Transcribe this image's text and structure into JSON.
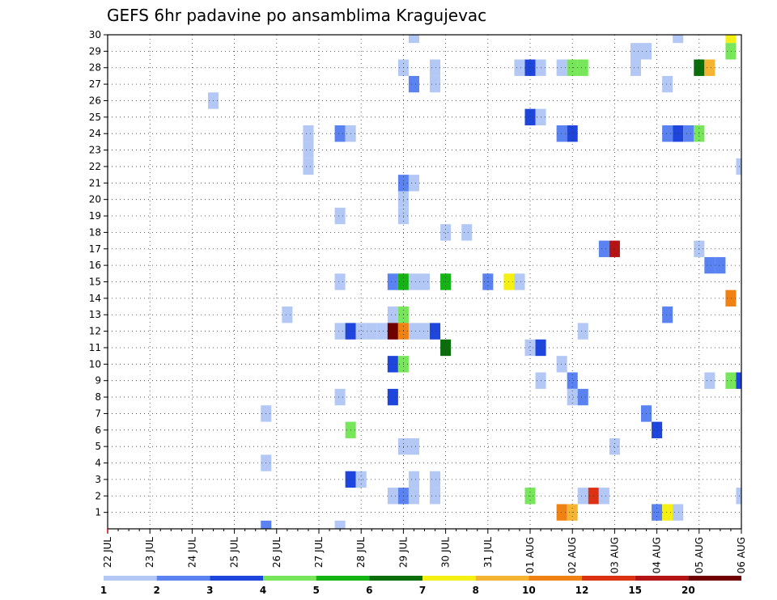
{
  "chart_data": {
    "type": "heatmap",
    "title": "GEFS 6hr padavine po ansamblima Kragujevac",
    "xlabel": "",
    "ylabel": "",
    "x_tick_labels": [
      "22 JUL",
      "23 JUL",
      "24 JUL",
      "25 JUL",
      "26 JUL",
      "27 JUL",
      "28 JUL",
      "29 JUL",
      "30 JUL",
      "31 JUL",
      "01 AUG",
      "02 AUG",
      "03 AUG",
      "04 AUG",
      "05 AUG",
      "06 AUG"
    ],
    "x_range_days": [
      0,
      15
    ],
    "y_tick_labels": [
      1,
      2,
      3,
      4,
      5,
      6,
      7,
      8,
      9,
      10,
      11,
      12,
      13,
      14,
      15,
      16,
      17,
      18,
      19,
      20,
      21,
      22,
      23,
      24,
      25,
      26,
      27,
      28,
      29,
      30
    ],
    "y_range": [
      0,
      30
    ],
    "grid": true,
    "legend": {
      "placement": "bottom",
      "labels": [
        "1",
        "2",
        "3",
        "4",
        "5",
        "6",
        "7",
        "8",
        "10",
        "12",
        "15",
        "20"
      ],
      "colors": [
        "#b4c8f5",
        "#5a82f0",
        "#1e46dc",
        "#78e65a",
        "#14b414",
        "#0a6e0a",
        "#f5f014",
        "#f5b432",
        "#f08214",
        "#dc3214",
        "#b41414",
        "#700000"
      ]
    },
    "points": [
      {
        "d": 7.25,
        "m": 30,
        "b": 1
      },
      {
        "d": 13.5,
        "m": 30,
        "b": 1
      },
      {
        "d": 14.75,
        "m": 30,
        "b": 7
      },
      {
        "d": 12.5,
        "m": 29,
        "b": 1
      },
      {
        "d": 12.75,
        "m": 29,
        "b": 1
      },
      {
        "d": 14.75,
        "m": 29,
        "b": 4
      },
      {
        "d": 7.0,
        "m": 28,
        "b": 1
      },
      {
        "d": 7.75,
        "m": 28,
        "b": 1
      },
      {
        "d": 9.75,
        "m": 28,
        "b": 1
      },
      {
        "d": 10.0,
        "m": 28,
        "b": 3
      },
      {
        "d": 10.25,
        "m": 28,
        "b": 1
      },
      {
        "d": 10.75,
        "m": 28,
        "b": 1
      },
      {
        "d": 11.0,
        "m": 28,
        "b": 4
      },
      {
        "d": 11.25,
        "m": 28,
        "b": 4
      },
      {
        "d": 12.5,
        "m": 28,
        "b": 1
      },
      {
        "d": 14.0,
        "m": 28,
        "b": 6
      },
      {
        "d": 14.25,
        "m": 28,
        "b": 8
      },
      {
        "d": 7.25,
        "m": 27,
        "b": 2
      },
      {
        "d": 7.75,
        "m": 27,
        "b": 1
      },
      {
        "d": 13.25,
        "m": 27,
        "b": 1
      },
      {
        "d": 2.5,
        "m": 26,
        "b": 1
      },
      {
        "d": 10.0,
        "m": 25,
        "b": 3
      },
      {
        "d": 10.25,
        "m": 25,
        "b": 1
      },
      {
        "d": 4.75,
        "m": 24,
        "b": 1
      },
      {
        "d": 5.5,
        "m": 24,
        "b": 2
      },
      {
        "d": 5.75,
        "m": 24,
        "b": 1
      },
      {
        "d": 10.75,
        "m": 24,
        "b": 2
      },
      {
        "d": 11.0,
        "m": 24,
        "b": 3
      },
      {
        "d": 13.25,
        "m": 24,
        "b": 2
      },
      {
        "d": 13.5,
        "m": 24,
        "b": 3
      },
      {
        "d": 13.75,
        "m": 24,
        "b": 2
      },
      {
        "d": 14.0,
        "m": 24,
        "b": 4
      },
      {
        "d": 4.75,
        "m": 23,
        "b": 1
      },
      {
        "d": 4.75,
        "m": 22,
        "b": 1
      },
      {
        "d": 15.0,
        "m": 22,
        "b": 1
      },
      {
        "d": 7.0,
        "m": 21,
        "b": 2
      },
      {
        "d": 7.25,
        "m": 21,
        "b": 1
      },
      {
        "d": 7.0,
        "m": 20,
        "b": 1
      },
      {
        "d": 5.5,
        "m": 19,
        "b": 1
      },
      {
        "d": 7.0,
        "m": 19,
        "b": 1
      },
      {
        "d": 8.0,
        "m": 18,
        "b": 1
      },
      {
        "d": 8.5,
        "m": 18,
        "b": 1
      },
      {
        "d": 11.75,
        "m": 17,
        "b": 2
      },
      {
        "d": 12.0,
        "m": 17,
        "b": 11
      },
      {
        "d": 14.0,
        "m": 17,
        "b": 1
      },
      {
        "d": 14.25,
        "m": 16,
        "b": 2
      },
      {
        "d": 14.5,
        "m": 16,
        "b": 2
      },
      {
        "d": 5.5,
        "m": 15,
        "b": 1
      },
      {
        "d": 6.75,
        "m": 15,
        "b": 2
      },
      {
        "d": 7.0,
        "m": 15,
        "b": 5
      },
      {
        "d": 7.25,
        "m": 15,
        "b": 1
      },
      {
        "d": 7.5,
        "m": 15,
        "b": 1
      },
      {
        "d": 8.0,
        "m": 15,
        "b": 5
      },
      {
        "d": 9.0,
        "m": 15,
        "b": 2
      },
      {
        "d": 9.5,
        "m": 15,
        "b": 7
      },
      {
        "d": 9.75,
        "m": 15,
        "b": 1
      },
      {
        "d": 14.75,
        "m": 14,
        "b": 9
      },
      {
        "d": 4.25,
        "m": 13,
        "b": 1
      },
      {
        "d": 6.75,
        "m": 13,
        "b": 1
      },
      {
        "d": 7.0,
        "m": 13,
        "b": 4
      },
      {
        "d": 13.25,
        "m": 13,
        "b": 2
      },
      {
        "d": 5.5,
        "m": 12,
        "b": 1
      },
      {
        "d": 5.75,
        "m": 12,
        "b": 3
      },
      {
        "d": 6.0,
        "m": 12,
        "b": 1
      },
      {
        "d": 6.25,
        "m": 12,
        "b": 1
      },
      {
        "d": 6.5,
        "m": 12,
        "b": 1
      },
      {
        "d": 6.75,
        "m": 12,
        "b": 12
      },
      {
        "d": 7.0,
        "m": 12,
        "b": 9
      },
      {
        "d": 7.25,
        "m": 12,
        "b": 1
      },
      {
        "d": 7.5,
        "m": 12,
        "b": 1
      },
      {
        "d": 7.75,
        "m": 12,
        "b": 3
      },
      {
        "d": 11.25,
        "m": 12,
        "b": 1
      },
      {
        "d": 8.0,
        "m": 11,
        "b": 6
      },
      {
        "d": 10.0,
        "m": 11,
        "b": 1
      },
      {
        "d": 10.25,
        "m": 11,
        "b": 3
      },
      {
        "d": 6.75,
        "m": 10,
        "b": 3
      },
      {
        "d": 7.0,
        "m": 10,
        "b": 4
      },
      {
        "d": 10.75,
        "m": 10,
        "b": 1
      },
      {
        "d": 10.25,
        "m": 9,
        "b": 1
      },
      {
        "d": 11.0,
        "m": 9,
        "b": 2
      },
      {
        "d": 14.25,
        "m": 9,
        "b": 1
      },
      {
        "d": 14.75,
        "m": 9,
        "b": 4
      },
      {
        "d": 15.0,
        "m": 9,
        "b": 3
      },
      {
        "d": 5.5,
        "m": 8,
        "b": 1
      },
      {
        "d": 6.75,
        "m": 8,
        "b": 3
      },
      {
        "d": 11.0,
        "m": 8,
        "b": 1
      },
      {
        "d": 11.25,
        "m": 8,
        "b": 2
      },
      {
        "d": 3.75,
        "m": 7,
        "b": 1
      },
      {
        "d": 12.75,
        "m": 7,
        "b": 2
      },
      {
        "d": 5.75,
        "m": 6,
        "b": 4
      },
      {
        "d": 13.0,
        "m": 6,
        "b": 3
      },
      {
        "d": 7.0,
        "m": 5,
        "b": 1
      },
      {
        "d": 7.25,
        "m": 5,
        "b": 1
      },
      {
        "d": 12.0,
        "m": 5,
        "b": 1
      },
      {
        "d": 3.75,
        "m": 4,
        "b": 1
      },
      {
        "d": 5.75,
        "m": 3,
        "b": 3
      },
      {
        "d": 6.0,
        "m": 3,
        "b": 1
      },
      {
        "d": 7.25,
        "m": 3,
        "b": 1
      },
      {
        "d": 7.75,
        "m": 3,
        "b": 1
      },
      {
        "d": 6.75,
        "m": 2,
        "b": 1
      },
      {
        "d": 7.0,
        "m": 2,
        "b": 2
      },
      {
        "d": 7.25,
        "m": 2,
        "b": 1
      },
      {
        "d": 7.75,
        "m": 2,
        "b": 1
      },
      {
        "d": 10.0,
        "m": 2,
        "b": 4
      },
      {
        "d": 11.25,
        "m": 2,
        "b": 1
      },
      {
        "d": 11.5,
        "m": 2,
        "b": 10
      },
      {
        "d": 11.75,
        "m": 2,
        "b": 1
      },
      {
        "d": 15.0,
        "m": 2,
        "b": 1
      },
      {
        "d": 10.75,
        "m": 1,
        "b": 9
      },
      {
        "d": 11.0,
        "m": 1,
        "b": 8
      },
      {
        "d": 13.0,
        "m": 1,
        "b": 2
      },
      {
        "d": 13.25,
        "m": 1,
        "b": 7
      },
      {
        "d": 13.5,
        "m": 1,
        "b": 1
      },
      {
        "d": 3.75,
        "m": 0,
        "b": 2
      },
      {
        "d": 5.5,
        "m": 0,
        "b": 1
      }
    ]
  }
}
